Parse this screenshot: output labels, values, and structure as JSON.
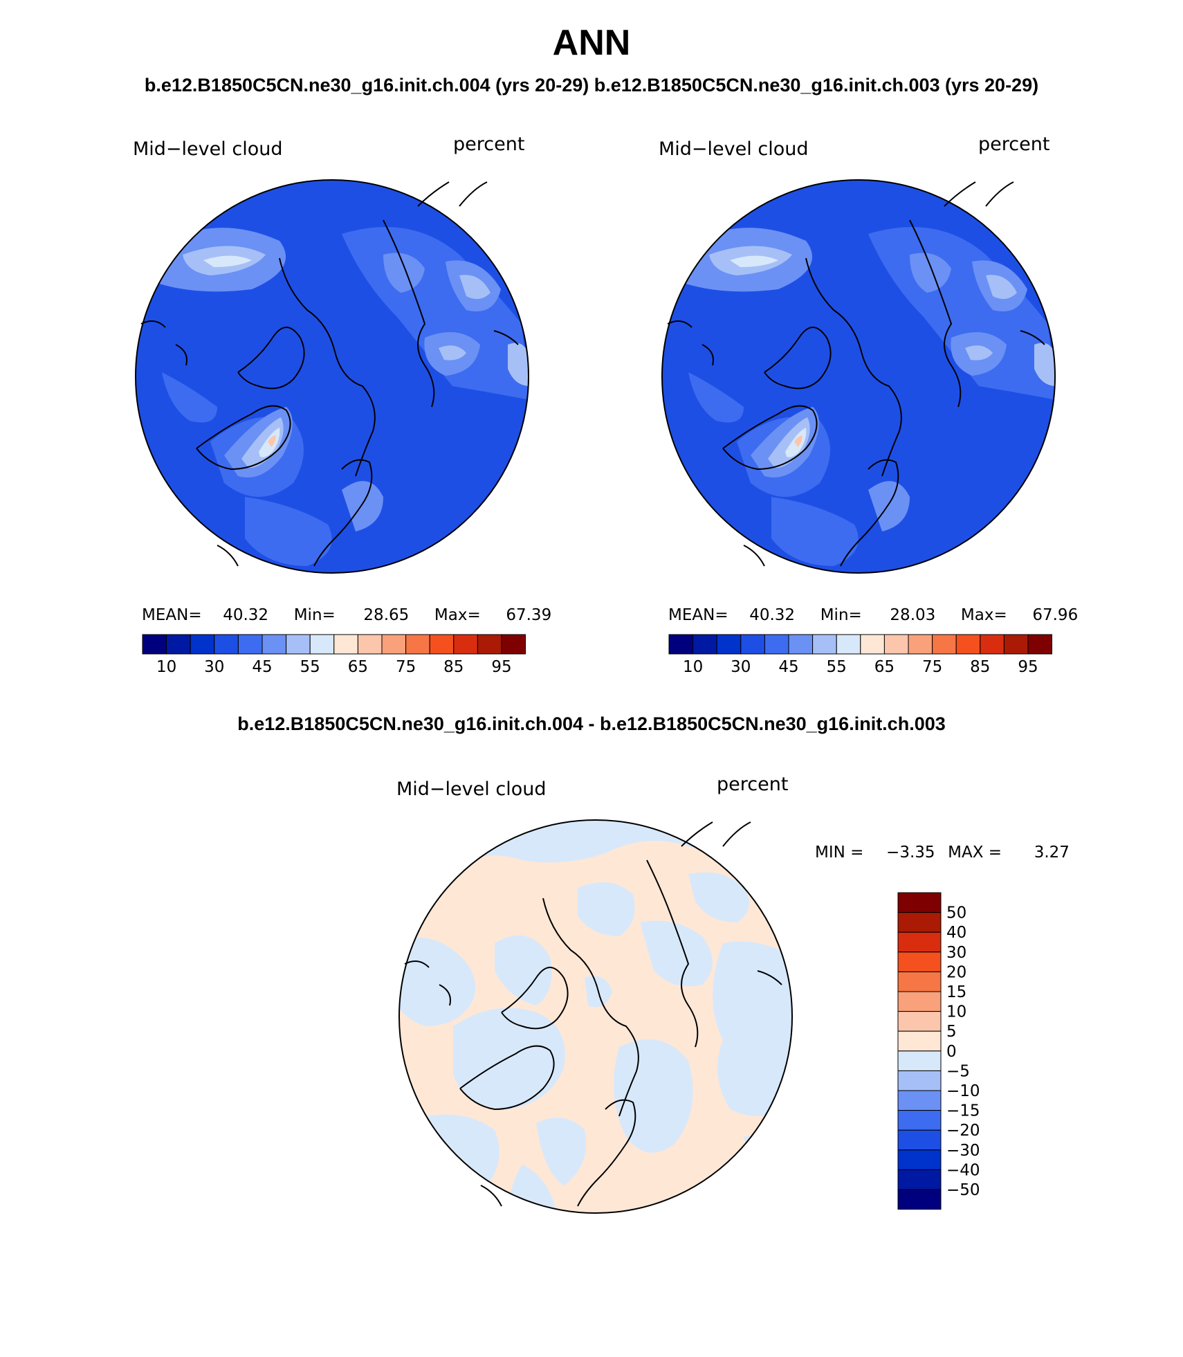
{
  "header": {
    "title": "ANN",
    "subtitle_left": "b.e12.B1850C5CN.ne30_g16.init.ch.004 (yrs 20-29)",
    "subtitle_right": "b.e12.B1850C5CN.ne30_g16.init.ch.003 (yrs 20-29)",
    "diff_title": "b.e12.B1850C5CN.ne30_g16.init.ch.004 - b.e12.B1850C5CN.ne30_g16.init.ch.003"
  },
  "panels": [
    {
      "variable": "Mid−level cloud",
      "units": "percent",
      "stats": {
        "mean_label": "MEAN=",
        "mean": "40.32",
        "min_label": "Min=",
        "min": "28.65",
        "max_label": "Max=",
        "max": "67.39"
      }
    },
    {
      "variable": "Mid−level cloud",
      "units": "percent",
      "stats": {
        "mean_label": "MEAN=",
        "mean": "40.32",
        "min_label": "Min=",
        "min": "28.03",
        "max_label": "Max=",
        "max": "67.96"
      }
    }
  ],
  "diff_panel": {
    "variable": "Mid−level cloud",
    "units": "percent",
    "min_label": "MIN =",
    "min": "−3.35",
    "max_label": "MAX =",
    "max": "3.27"
  },
  "colorbar_main": {
    "colors": [
      "#00007f",
      "#0019a3",
      "#0032cc",
      "#1e4fe5",
      "#3d6cf0",
      "#6b91f5",
      "#a6c0f7",
      "#d7e8fb",
      "#ffe7d6",
      "#fcc6ad",
      "#f8a17a",
      "#f67645",
      "#f4511e",
      "#d92d0f",
      "#aa1a05",
      "#7f0000"
    ],
    "tick_labels": [
      "10",
      "30",
      "45",
      "55",
      "65",
      "75",
      "85",
      "95"
    ]
  },
  "colorbar_diff": {
    "colors_bottom_to_top": [
      "#00007f",
      "#0019a3",
      "#0032cc",
      "#1e4fe5",
      "#3d6cf0",
      "#6b91f5",
      "#a6c0f7",
      "#d7e8fb",
      "#ffe7d6",
      "#fcc6ad",
      "#f8a17a",
      "#f67645",
      "#f4511e",
      "#d92d0f",
      "#aa1a05",
      "#7f0000"
    ],
    "tick_labels_top_to_bottom": [
      "50",
      "40",
      "30",
      "20",
      "15",
      "10",
      "5",
      "0",
      "−5",
      "−10",
      "−15",
      "−20",
      "−30",
      "−40",
      "−50"
    ]
  },
  "map_colors": {
    "base": "#1e4fe5",
    "mid": "#3d6cf0",
    "light": "#6b91f5",
    "lighter": "#a6c0f7",
    "lightest": "#d7e8fb",
    "warm": "#ffe7d6",
    "warm2": "#fcc6ad",
    "diff_neg": "#d7e8fb",
    "diff_pos": "#ffe7d6"
  }
}
